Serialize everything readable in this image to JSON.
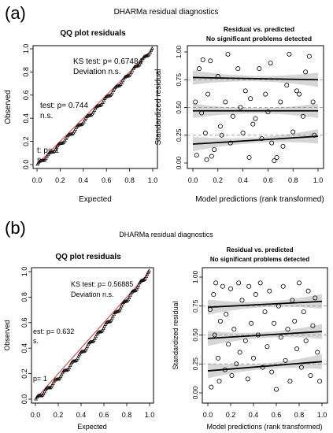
{
  "panels": [
    {
      "label": "(a)",
      "title": "DHARMa residual diagnostics",
      "qq": {
        "title": "QQ plot residuals",
        "xlabel": "Expected",
        "ylabel": "Observed",
        "ks_text": "KS test: p= 0.67484",
        "deviation_text": "Deviation  n.s.",
        "disp_text": "test: p= 0.744",
        "disp_ns": "n.s.",
        "outlier_text": "t: p= 1",
        "outlier_ns": "s.",
        "ticks": [
          "0.0",
          "0.2",
          "0.4",
          "0.6",
          "0.8",
          "1.0"
        ]
      },
      "resid": {
        "title_line1": "Residual vs. predicted",
        "title_line2": "No significant problems detected",
        "xlabel": "Model predictions (rank transformed)",
        "ylabel": "Standardized residual",
        "xticks": [
          "0.0",
          "0.2",
          "0.4",
          "0.6",
          "0.8",
          "1.0"
        ],
        "yticks": [
          "0.00",
          "0.25",
          "0.50",
          "0.75",
          "1.00"
        ]
      }
    },
    {
      "label": "(b)",
      "title": "DHARMa residual diagnostics",
      "qq": {
        "title": "QQ plot residuals",
        "xlabel": "Expected",
        "ylabel": "Observed",
        "ks_text": "KS test: p= 0.56885",
        "deviation_text": "Deviation  n.s.",
        "disp_text": "est: p= 0.632",
        "disp_ns": "s.",
        "outlier_text": "p= 1",
        "outlier_ns": "",
        "ticks": [
          "0.0",
          "0.2",
          "0.4",
          "0.6",
          "0.8",
          "1.0"
        ]
      },
      "resid": {
        "title_line1": "Residual vs. predicted",
        "title_line2": "No significant problems detected",
        "xlabel": "Model predictions (rank transformed)",
        "ylabel": "Standardized residual",
        "xticks": [
          "0.0",
          "0.2",
          "0.4",
          "0.6",
          "0.8",
          "1.0"
        ],
        "yticks": [
          "0.00",
          "0.25",
          "0.50",
          "0.75",
          "1.00"
        ]
      }
    }
  ],
  "chart_data": [
    {
      "type": "scatter",
      "panel": "(a)",
      "title": "QQ plot residuals",
      "xlabel": "Expected",
      "ylabel": "Observed",
      "xlim": [
        0,
        1
      ],
      "ylim": [
        0,
        1
      ],
      "series": [
        {
          "name": "",
          "kind": "points",
          "qq": true,
          "exponent": 1.08,
          "n": 110
        },
        {
          "name": "",
          "kind": "reference-line",
          "x": [
            0,
            1
          ],
          "y": [
            0,
            1
          ],
          "color": "#e03030"
        }
      ],
      "annotations": [
        "KS test: p= 0.67484",
        "Deviation  n.s.",
        "test: p= 0.744",
        "n.s.",
        "t: p= 1",
        "s."
      ]
    },
    {
      "type": "scatter",
      "panel": "(a)",
      "title": "Residual vs. predicted\nNo significant problems detected",
      "xlabel": "Model predictions (rank transformed)",
      "ylabel": "Standardized residual",
      "xlim": [
        0,
        1
      ],
      "ylim": [
        0,
        1
      ],
      "x": [
        0.02,
        0.03,
        0.05,
        0.07,
        0.08,
        0.1,
        0.11,
        0.12,
        0.14,
        0.15,
        0.17,
        0.2,
        0.22,
        0.23,
        0.26,
        0.28,
        0.3,
        0.32,
        0.36,
        0.38,
        0.4,
        0.42,
        0.45,
        0.46,
        0.48,
        0.5,
        0.53,
        0.55,
        0.58,
        0.6,
        0.62,
        0.63,
        0.65,
        0.67,
        0.7,
        0.72,
        0.75,
        0.77,
        0.8,
        0.83,
        0.85,
        0.88,
        0.9,
        0.93,
        0.96,
        0.97
      ],
      "y": [
        0.55,
        0.07,
        0.85,
        0.45,
        0.93,
        0.27,
        0.03,
        0.62,
        0.92,
        0.06,
        0.12,
        0.78,
        0.33,
        0.25,
        0.55,
        0.98,
        0.18,
        0.42,
        0.85,
        0.5,
        0.27,
        0.65,
        0.05,
        0.58,
        0.35,
        0.4,
        0.85,
        0.22,
        0.62,
        0.46,
        0.9,
        0.18,
        0.02,
        0.05,
        0.55,
        0.15,
        0.7,
        0.98,
        0.28,
        0.65,
        0.62,
        0.42,
        0.82,
        0.96,
        0.55,
        0.25
      ],
      "quantile_lines": [
        {
          "q": 0.25,
          "intercept": 0.17,
          "slope": 0.07
        },
        {
          "q": 0.5,
          "intercept": 0.47,
          "slope": 0.0
        },
        {
          "q": 0.75,
          "intercept": 0.77,
          "slope": -0.02
        }
      ],
      "reference_levels": [
        0.25,
        0.5,
        0.75
      ]
    },
    {
      "type": "scatter",
      "panel": "(b)",
      "title": "QQ plot residuals",
      "xlabel": "Expected",
      "ylabel": "Observed",
      "xlim": [
        0,
        1
      ],
      "ylim": [
        0,
        1
      ],
      "series": [
        {
          "name": "",
          "kind": "points",
          "qq": true,
          "exponent": 1.12,
          "n": 120
        },
        {
          "name": "",
          "kind": "reference-line",
          "x": [
            0,
            1
          ],
          "y": [
            0,
            1
          ],
          "color": "#e03030"
        }
      ],
      "annotations": [
        "KS test: p= 0.56885",
        "Deviation  n.s.",
        "est: p= 0.632",
        "s.",
        "p= 1"
      ]
    },
    {
      "type": "scatter",
      "panel": "(b)",
      "title": "Residual vs. predicted\nNo significant problems detected",
      "xlabel": "Model predictions (rank transformed)",
      "ylabel": "Standardized residual",
      "xlim": [
        0,
        1
      ],
      "ylim": [
        0,
        1
      ],
      "x": [
        0.02,
        0.03,
        0.05,
        0.06,
        0.07,
        0.09,
        0.1,
        0.11,
        0.13,
        0.15,
        0.16,
        0.18,
        0.2,
        0.21,
        0.23,
        0.25,
        0.27,
        0.28,
        0.3,
        0.33,
        0.35,
        0.36,
        0.38,
        0.4,
        0.42,
        0.44,
        0.46,
        0.48,
        0.5,
        0.52,
        0.54,
        0.56,
        0.58,
        0.6,
        0.62,
        0.64,
        0.66,
        0.68,
        0.7,
        0.72,
        0.74,
        0.76,
        0.78,
        0.8,
        0.82,
        0.84,
        0.86,
        0.88,
        0.9,
        0.92,
        0.94,
        0.96,
        0.98
      ],
      "y": [
        0.72,
        0.05,
        0.85,
        0.5,
        0.95,
        0.3,
        0.1,
        0.62,
        0.92,
        0.2,
        0.68,
        0.42,
        0.9,
        0.15,
        0.55,
        0.25,
        0.95,
        0.35,
        0.8,
        0.45,
        0.12,
        0.92,
        0.6,
        0.3,
        0.85,
        0.5,
        0.95,
        0.22,
        0.7,
        0.4,
        0.88,
        0.18,
        0.6,
        0.03,
        0.75,
        0.48,
        0.92,
        0.28,
        0.55,
        0.1,
        0.8,
        0.62,
        0.38,
        0.95,
        0.22,
        0.7,
        0.45,
        0.88,
        0.15,
        0.58,
        0.82,
        0.35,
        0.1
      ],
      "quantile_lines": [
        {
          "q": 0.25,
          "intercept": 0.19,
          "slope": 0.08
        },
        {
          "q": 0.5,
          "intercept": 0.47,
          "slope": 0.06
        },
        {
          "q": 0.75,
          "intercept": 0.74,
          "slope": 0.05
        }
      ],
      "reference_levels": [
        0.25,
        0.5,
        0.75
      ]
    }
  ]
}
